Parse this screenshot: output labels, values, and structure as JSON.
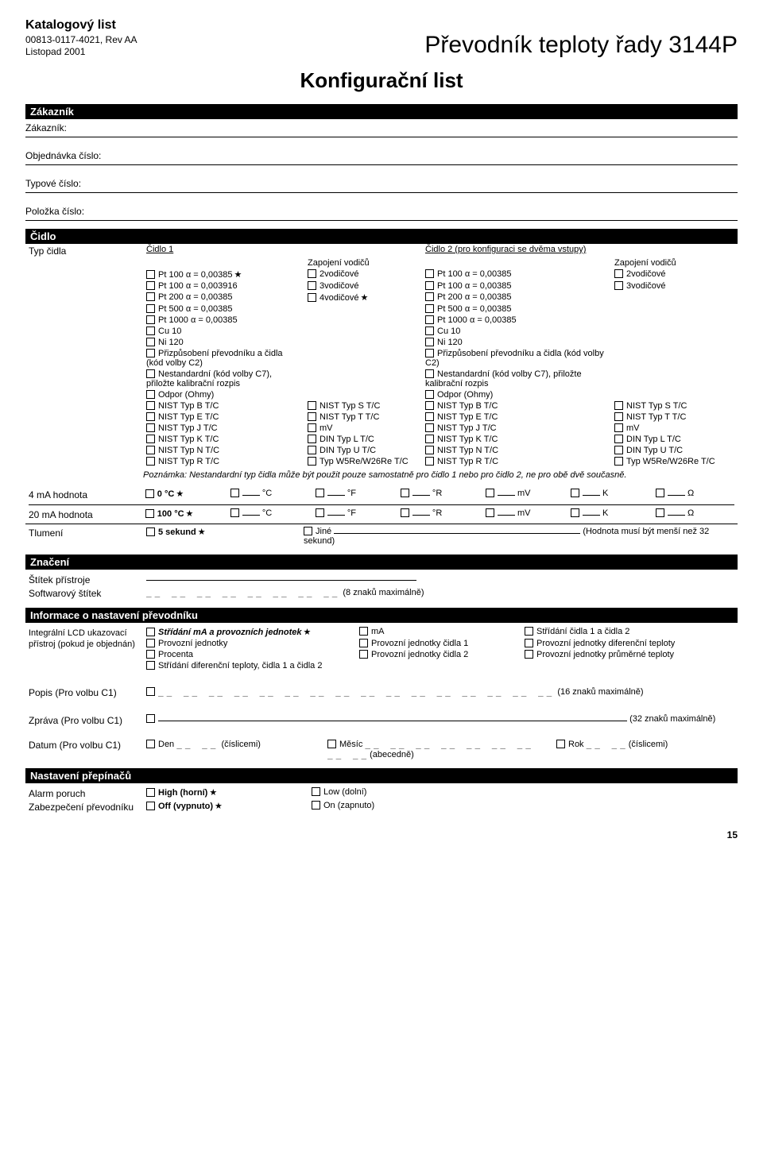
{
  "header": {
    "catalog": "Katalogový list",
    "docnum": "00813-0117-4021, Rev AA",
    "date": "Listopad 2001",
    "title": "Převodník teploty řady 3144P",
    "config_title": "Konfigurační list"
  },
  "customer": {
    "bar": "Zákazník",
    "label": "Zákazník:",
    "order": "Objednávka číslo:",
    "type": "Typové číslo:",
    "item": "Položka číslo:"
  },
  "sensor": {
    "bar": "Čidlo",
    "type_label": "Typ čidla",
    "s1": "Čidlo 1",
    "s2": "Čidlo 2 (pro konfiguraci se dvěma vstupy)",
    "wiring": "Zapojení vodičů",
    "rows": [
      {
        "c1": "Pt 100 α = 0,00385",
        "c1star": true,
        "w1": "2vodičové",
        "c2": "Pt 100 α = 0,00385",
        "w2": "2vodičové"
      },
      {
        "c1": "Pt 100 α = 0,003916",
        "w1": "3vodičové",
        "c2": "Pt 100 α = 0,00385",
        "w2": "3vodičové"
      },
      {
        "c1": "Pt 200 α = 0,00385",
        "w1": "4vodičové",
        "w1star": true,
        "c2": "Pt 200 α = 0,00385"
      },
      {
        "c1": "Pt 500 α = 0,00385",
        "c2": "Pt 500 α = 0,00385"
      },
      {
        "c1": "Pt 1000 α = 0,00385",
        "c2": "Pt 1000 α = 0,00385"
      },
      {
        "c1": "Cu 10",
        "c2": "Cu 10"
      },
      {
        "c1": "Ni 120",
        "c2": "Ni 120"
      },
      {
        "c1": "Přizpůsobení převodníku a čidla (kód volby C2)",
        "c2": "Přizpůsobení převodníku a čidla (kód volby C2)"
      },
      {
        "c1": "Nestandardní (kód volby C7), přiložte kalibrační rozpis",
        "c2": "Nestandardní (kód volby C7), přiložte kalibrační rozpis"
      },
      {
        "c1": "Odpor (Ohmy)",
        "c2": "Odpor (Ohmy)"
      }
    ],
    "tc_rows": [
      {
        "a": "NIST Typ B T/C",
        "b": "NIST Typ S T/C",
        "c": "NIST Typ B T/C",
        "d": "NIST Typ S T/C"
      },
      {
        "a": "NIST Typ E T/C",
        "b": "NIST Typ T T/C",
        "c": "NIST Typ E T/C",
        "d": "NIST Typ T T/C"
      },
      {
        "a": "NIST Typ J T/C",
        "b": "mV",
        "c": "NIST Typ J T/C",
        "d": "mV"
      },
      {
        "a": "NIST Typ K T/C",
        "b": "DIN Typ L T/C",
        "c": "NIST Typ K T/C",
        "d": "DIN Typ L T/C"
      },
      {
        "a": "NIST Typ N T/C",
        "b": "DIN Typ U T/C",
        "c": "NIST Typ N T/C",
        "d": "DIN Typ U T/C"
      },
      {
        "a": "NIST Typ R T/C",
        "b": "Typ W5Re/W26Re T/C",
        "c": "NIST Typ R T/C",
        "d": "Typ W5Re/W26Re T/C"
      }
    ],
    "note": "Poznámka: Nestandardní typ čidla může být použit pouze samostatně pro čidlo 1 nebo pro čidlo 2, ne pro obě dvě současně."
  },
  "ma": {
    "r4": "4 mA hodnota",
    "r20": "20 mA hodnota",
    "c0": "0 °C",
    "c100": "100 °C",
    "units": [
      "°C",
      "°F",
      "°R",
      "mV",
      "K",
      "Ω"
    ]
  },
  "damp": {
    "label": "Tlumení",
    "def": "5 sekund",
    "other": "Jiné",
    "hint": "(Hodnota musí být menší než 32 sekund)"
  },
  "mark": {
    "bar": "Značení",
    "label": "Štítek přístroje",
    "sw": "Softwarový štítek",
    "swhint": "(8 znaků maximálně)"
  },
  "info": {
    "bar": "Informace o nastavení převodníku",
    "lcd": "Integrální LCD ukazovací přístroj (pokud je objednán)",
    "opts": [
      {
        "a": "Střídání mA a provozních jednotek",
        "astar": true,
        "abold": true,
        "b": "mA",
        "c": "Střídání čidla 1 a čidla 2"
      },
      {
        "a": "Provozní jednotky",
        "b": "Provozní jednotky čidla 1",
        "c": "Provozní jednotky diferenční teploty"
      },
      {
        "a": "Procenta",
        "b": "Provozní jednotky čidla 2",
        "c": "Provozní jednotky průměrné teploty"
      },
      {
        "a": "Střídání diferenční teploty, čidla 1 a čidla 2"
      }
    ],
    "desc": "Popis (Pro volbu C1)",
    "desc_hint": "(16 znaků maximálně)",
    "msg": "Zpráva (Pro volbu C1)",
    "msg_hint": "(32 znaků maximálně)",
    "date": "Datum (Pro volbu C1)",
    "day": "Den",
    "day_hint": "(číslicemi)",
    "month": "Měsíc",
    "month_hint": "(abecedně)",
    "year": "Rok",
    "year_hint": "(číslicemi)"
  },
  "sw": {
    "bar": "Nastavení přepínačů",
    "alarm": "Alarm poruch",
    "high": "High (horní)",
    "low": "Low (dolní)",
    "sec": "Zabezpečení převodníku",
    "off": "Off (vypnuto)",
    "on": "On (zapnuto)"
  },
  "pagenum": "15"
}
